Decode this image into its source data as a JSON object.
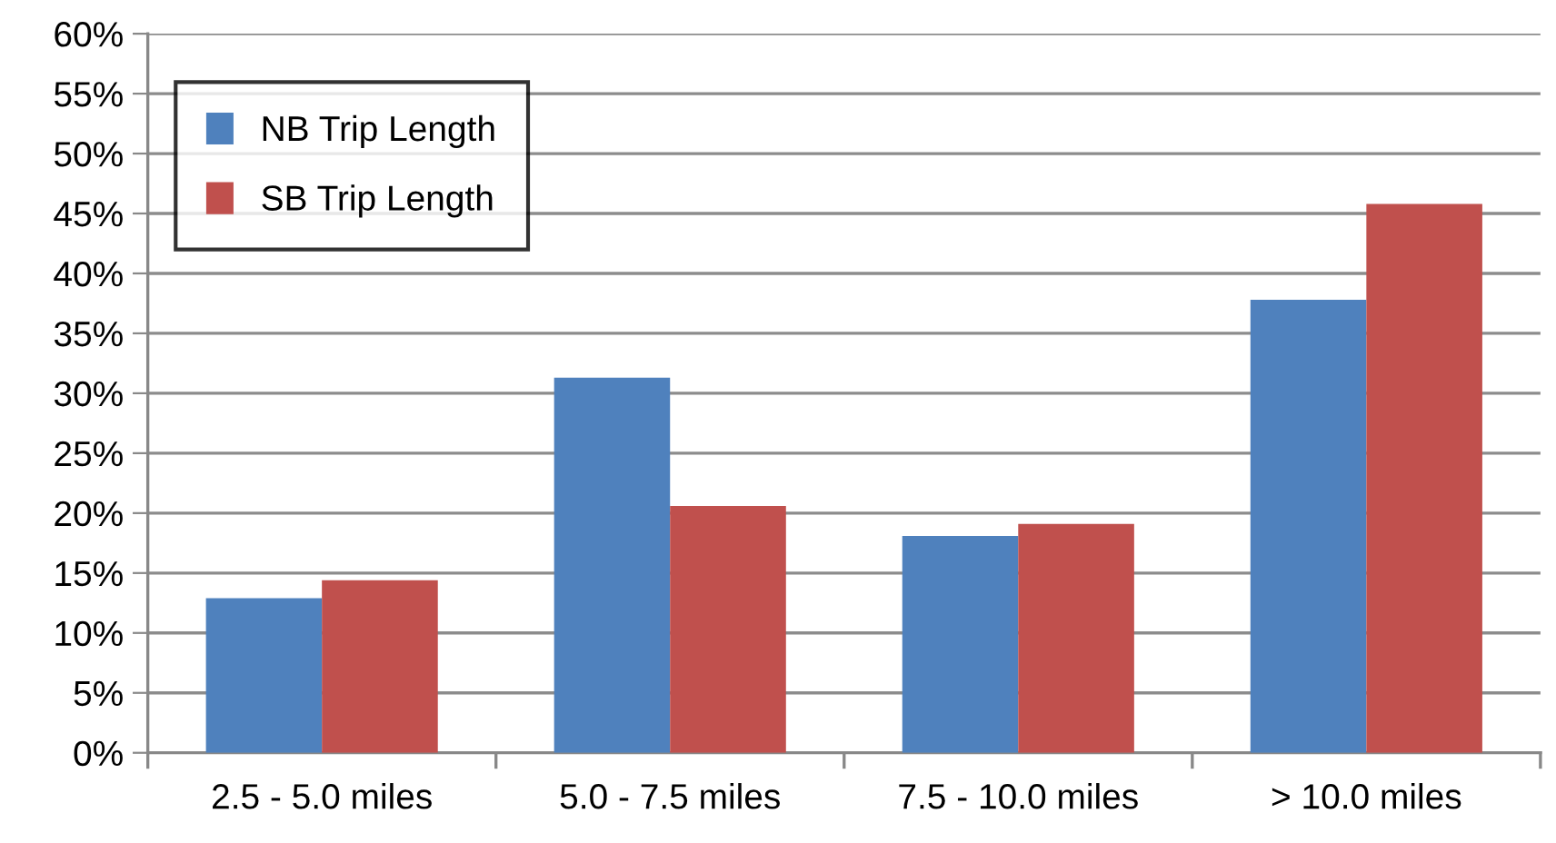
{
  "chart_data": {
    "type": "bar",
    "categories": [
      "2.5 - 5.0 miles",
      "5.0 - 7.5 miles",
      "7.5 - 10.0 miles",
      "> 10.0 miles"
    ],
    "series": [
      {
        "name": "NB Trip Length",
        "color": "#4f81bd",
        "values": [
          12.9,
          31.3,
          18.1,
          37.8
        ]
      },
      {
        "name": "SB Trip Length",
        "color": "#c0504d",
        "values": [
          14.4,
          20.6,
          19.1,
          45.8
        ]
      }
    ],
    "ylim": [
      0,
      60
    ],
    "yticks": [
      {
        "value": 0,
        "label": "0%"
      },
      {
        "value": 5,
        "label": "5%"
      },
      {
        "value": 10,
        "label": "10%"
      },
      {
        "value": 15,
        "label": "15%"
      },
      {
        "value": 20,
        "label": "20%"
      },
      {
        "value": 25,
        "label": "25%"
      },
      {
        "value": 30,
        "label": "30%"
      },
      {
        "value": 35,
        "label": "35%"
      },
      {
        "value": 40,
        "label": "40%"
      },
      {
        "value": 45,
        "label": "45%"
      },
      {
        "value": 50,
        "label": "50%"
      },
      {
        "value": 55,
        "label": "55%"
      },
      {
        "value": 60,
        "label": "60%"
      }
    ],
    "grid": "y",
    "legend": "top left"
  }
}
